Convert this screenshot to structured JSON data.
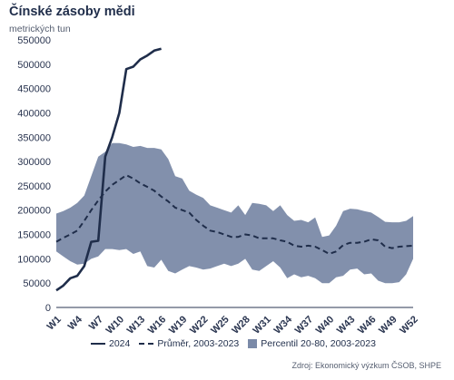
{
  "chart_data": {
    "type": "line",
    "title": "Čínské zásoby mědi",
    "subtitle": "metrických tun",
    "source": "Zdroj: Ekonomický výzkum ČSOB, SHPE",
    "ylim": [
      0,
      550000
    ],
    "yticks": [
      0,
      50000,
      100000,
      150000,
      200000,
      250000,
      300000,
      350000,
      400000,
      450000,
      500000,
      550000
    ],
    "ytick_labels": [
      "0",
      "50000",
      "100000",
      "150000",
      "200000",
      "250000",
      "300000",
      "350000",
      "400000",
      "450000",
      "500000",
      "550000"
    ],
    "xlim": [
      1,
      52
    ],
    "xticks": [
      1,
      4,
      7,
      10,
      13,
      16,
      19,
      22,
      25,
      28,
      31,
      34,
      37,
      40,
      43,
      46,
      49,
      52
    ],
    "xtick_labels": [
      "W1",
      "W4",
      "W7",
      "W10",
      "W13",
      "W16",
      "W19",
      "W22",
      "W25",
      "W28",
      "W31",
      "W34",
      "W37",
      "W40",
      "W43",
      "W46",
      "W49",
      "W52"
    ],
    "legend": [
      "2024",
      "Průměr, 2003-2023",
      "Percentil 20-80, 2003-2023"
    ],
    "legend_position": "bottom",
    "grid": false,
    "colors": {
      "line_2024": "#1f2d4a",
      "mean": "#1f2d4a",
      "band": "#7b8aa8"
    },
    "series": [
      {
        "name": "2024",
        "style": "solid",
        "x": [
          1,
          2,
          3,
          4,
          5,
          6,
          7,
          8,
          9,
          10,
          11,
          12,
          13,
          14,
          15,
          16
        ],
        "values": [
          35000,
          45000,
          60000,
          65000,
          85000,
          135000,
          137000,
          310000,
          350000,
          400000,
          490000,
          495000,
          510000,
          518000,
          528000,
          532000
        ]
      },
      {
        "name": "Průměr, 2003-2023",
        "style": "dashed",
        "x": [
          1,
          2,
          3,
          4,
          5,
          6,
          7,
          8,
          9,
          10,
          11,
          12,
          13,
          14,
          15,
          16,
          17,
          18,
          19,
          20,
          21,
          22,
          23,
          24,
          25,
          26,
          27,
          28,
          29,
          30,
          31,
          32,
          33,
          34,
          35,
          36,
          37,
          38,
          39,
          40,
          41,
          42,
          43,
          44,
          45,
          46,
          47,
          48,
          49,
          50,
          51,
          52
        ],
        "values": [
          135000,
          143000,
          150000,
          158000,
          178000,
          200000,
          220000,
          238000,
          252000,
          262000,
          272000,
          265000,
          255000,
          248000,
          240000,
          228000,
          218000,
          205000,
          200000,
          195000,
          180000,
          168000,
          158000,
          155000,
          150000,
          145000,
          145000,
          150000,
          148000,
          142000,
          142000,
          142000,
          138000,
          135000,
          127000,
          125000,
          127000,
          125000,
          118000,
          110000,
          115000,
          128000,
          133000,
          133000,
          135000,
          140000,
          138000,
          125000,
          122000,
          125000,
          126000,
          127000
        ]
      },
      {
        "name": "Percentil 20-80, 2003-2023",
        "style": "band",
        "x": [
          1,
          2,
          3,
          4,
          5,
          6,
          7,
          8,
          9,
          10,
          11,
          12,
          13,
          14,
          15,
          16,
          17,
          18,
          19,
          20,
          21,
          22,
          23,
          24,
          25,
          26,
          27,
          28,
          29,
          30,
          31,
          32,
          33,
          34,
          35,
          36,
          37,
          38,
          39,
          40,
          41,
          42,
          43,
          44,
          45,
          46,
          47,
          48,
          49,
          50,
          51,
          52
        ],
        "upper": [
          193000,
          198000,
          205000,
          215000,
          230000,
          270000,
          310000,
          320000,
          338000,
          338000,
          335000,
          330000,
          332000,
          328000,
          328000,
          325000,
          305000,
          270000,
          265000,
          240000,
          232000,
          225000,
          210000,
          205000,
          200000,
          195000,
          210000,
          190000,
          215000,
          213000,
          210000,
          198000,
          210000,
          190000,
          178000,
          180000,
          175000,
          185000,
          145000,
          148000,
          168000,
          198000,
          203000,
          202000,
          198000,
          195000,
          186000,
          176000,
          175000,
          175000,
          178000,
          188000
        ],
        "lower": [
          115000,
          105000,
          95000,
          88000,
          90000,
          100000,
          105000,
          120000,
          120000,
          118000,
          120000,
          110000,
          115000,
          85000,
          82000,
          98000,
          75000,
          70000,
          78000,
          85000,
          82000,
          78000,
          80000,
          85000,
          90000,
          85000,
          90000,
          100000,
          78000,
          75000,
          85000,
          95000,
          82000,
          60000,
          68000,
          62000,
          65000,
          60000,
          50000,
          50000,
          62000,
          65000,
          78000,
          80000,
          68000,
          70000,
          55000,
          50000,
          50000,
          52000,
          68000,
          100000
        ]
      }
    ]
  }
}
